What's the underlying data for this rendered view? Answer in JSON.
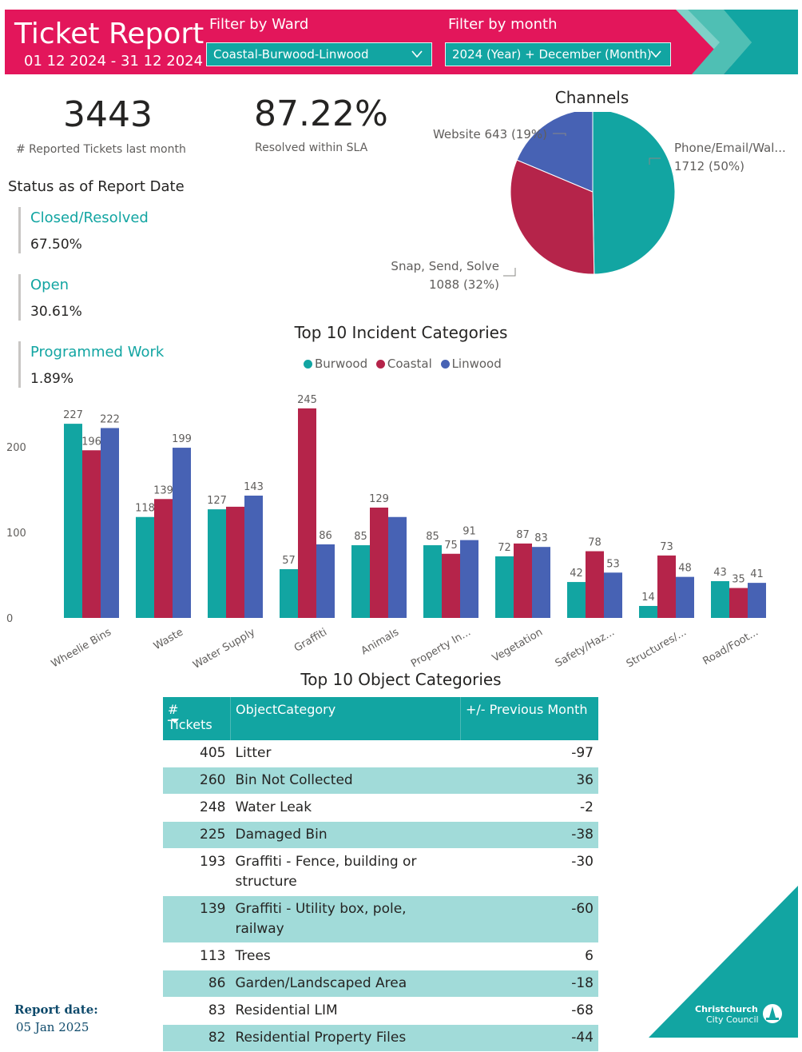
{
  "header": {
    "title": "Ticket Report",
    "date_range": "01 12 2024 - 31 12 2024",
    "ward_filter": {
      "label": "Filter by Ward",
      "value": "Coastal-Burwood-Linwood"
    },
    "month_filter": {
      "label": "Filter by month",
      "value": "2024 (Year) + December (Month)"
    }
  },
  "kpis": {
    "tickets": {
      "value": "3443",
      "caption": "# Reported Tickets last month"
    },
    "sla": {
      "value": "87.22%",
      "caption": "Resolved within SLA"
    }
  },
  "status": {
    "heading": "Status as of Report Date",
    "items": [
      {
        "name": "Closed/Resolved",
        "value": "67.50%"
      },
      {
        "name": "Open",
        "value": "30.61%"
      },
      {
        "name": "Programmed Work",
        "value": "1.89%"
      }
    ]
  },
  "colors": {
    "accent": "#e3165b",
    "teal": "#12a5a2",
    "crimson": "#b5244a",
    "blue": "#4762b4",
    "row_alt": "#a1dbd9"
  },
  "chart_data": [
    {
      "type": "pie",
      "title": "Channels",
      "slices": [
        {
          "label": "Phone/Email/Wal...",
          "value": 1712,
          "display": "1712 (50%)",
          "color": "#12a5a2"
        },
        {
          "label": "Snap, Send, Solve",
          "value": 1088,
          "display": "1088 (32%)",
          "color": "#b5244a"
        },
        {
          "label": "Website",
          "value": 643,
          "display": "643 (19%)",
          "color": "#4762b4"
        }
      ]
    },
    {
      "type": "bar",
      "title": "Top 10 Incident Categories",
      "categories": [
        "Wheelie Bins",
        "Waste",
        "Water Supply",
        "Graffiti",
        "Animals",
        "Property In...",
        "Vegetation",
        "Safety/Haz...",
        "Structures/...",
        "Road/Foot..."
      ],
      "series": [
        {
          "name": "Burwood",
          "color": "#12a5a2",
          "values": [
            227,
            118,
            127,
            57,
            85,
            85,
            72,
            42,
            14,
            43
          ]
        },
        {
          "name": "Coastal",
          "color": "#b5244a",
          "values": [
            196,
            139,
            130,
            245,
            129,
            75,
            87,
            78,
            73,
            35
          ]
        },
        {
          "name": "Linwood",
          "color": "#4762b4",
          "values": [
            222,
            199,
            143,
            86,
            118,
            91,
            83,
            53,
            48,
            41
          ]
        }
      ],
      "value_labels": [
        [
          "227",
          "196",
          "222"
        ],
        [
          "118",
          "139",
          "199"
        ],
        [
          "127",
          "",
          "143"
        ],
        [
          "57",
          "245",
          "86"
        ],
        [
          "85",
          "129",
          ""
        ],
        [
          "85",
          "75",
          "91"
        ],
        [
          "72",
          "87",
          "83"
        ],
        [
          "42",
          "78",
          "53"
        ],
        [
          "14",
          "73",
          "48"
        ],
        [
          "43",
          "35",
          "41"
        ]
      ],
      "yticks": [
        "0",
        "100",
        "200"
      ],
      "ylim": [
        0,
        250
      ],
      "legend": "top"
    }
  ],
  "objects_table": {
    "title": "Top 10 Object Categories",
    "columns": [
      "# Tickets",
      "ObjectCategory",
      "+/- Previous Month"
    ],
    "rows": [
      [
        "405",
        "Litter",
        "-97"
      ],
      [
        "260",
        "Bin Not Collected",
        "36"
      ],
      [
        "248",
        "Water Leak",
        "-2"
      ],
      [
        "225",
        "Damaged Bin",
        "-38"
      ],
      [
        "193",
        "Graffiti - Fence, building or structure",
        "-30"
      ],
      [
        "139",
        "Graffiti - Utility box, pole, railway",
        "-60"
      ],
      [
        "113",
        "Trees",
        "6"
      ],
      [
        "86",
        "Garden/Landscaped Area",
        "-18"
      ],
      [
        "83",
        "Residential LIM",
        "-68"
      ],
      [
        "82",
        "Residential Property Files",
        "-44"
      ]
    ]
  },
  "footer": {
    "report_label": "Report date:",
    "report_date": "05 Jan 2025",
    "logo_line1": "Christchurch",
    "logo_line2": "City Council"
  }
}
